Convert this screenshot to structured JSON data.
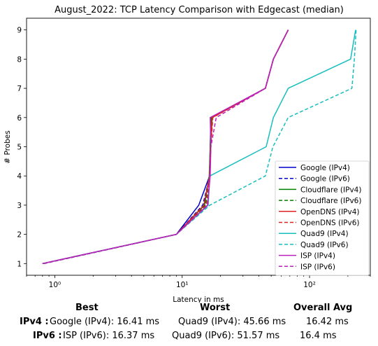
{
  "chart_data": {
    "type": "line",
    "title": "August_2022: TCP Latency Comparison with Edgecast (median)",
    "xlabel": "Latency in ms",
    "ylabel": "# Probes",
    "xscale": "log",
    "xlim": [
      0.6,
      300
    ],
    "ylim": [
      0.6,
      9.4
    ],
    "x_ticks": [
      1,
      10,
      100
    ],
    "x_tick_labels": [
      "10⁰",
      "10¹",
      "10²"
    ],
    "y_ticks": [
      1,
      2,
      3,
      4,
      5,
      6,
      7,
      8,
      9
    ],
    "legend_position": "lower-right",
    "series": [
      {
        "name": "Google (IPv4)",
        "color": "#0000cc",
        "dash": "solid",
        "points": [
          [
            0.8,
            1
          ],
          [
            9.0,
            2
          ],
          [
            13.5,
            3
          ],
          [
            16.41,
            4
          ],
          [
            16.6,
            5
          ],
          [
            16.8,
            6
          ],
          [
            45,
            7
          ],
          [
            52,
            8
          ],
          [
            68,
            9
          ]
        ]
      },
      {
        "name": "Google (IPv6)",
        "color": "#0000cc",
        "dash": "dashed",
        "points": [
          [
            0.82,
            1
          ],
          [
            9.0,
            2
          ],
          [
            14.5,
            3
          ],
          [
            16.5,
            4
          ],
          [
            16.7,
            5
          ],
          [
            17.2,
            6
          ],
          [
            45,
            7
          ],
          [
            52,
            8
          ],
          [
            68,
            9
          ]
        ]
      },
      {
        "name": "Cloudflare (IPv4)",
        "color": "#008000",
        "dash": "solid",
        "points": [
          [
            0.8,
            1
          ],
          [
            9.0,
            2
          ],
          [
            15,
            3
          ],
          [
            16.3,
            4
          ],
          [
            16.6,
            5
          ],
          [
            16.9,
            6
          ],
          [
            45,
            7
          ],
          [
            52,
            8
          ],
          [
            68,
            9
          ]
        ]
      },
      {
        "name": "Cloudflare (IPv6)",
        "color": "#008000",
        "dash": "dashed",
        "points": [
          [
            0.82,
            1
          ],
          [
            9.0,
            2
          ],
          [
            15.2,
            3
          ],
          [
            16.4,
            4
          ],
          [
            16.7,
            5
          ],
          [
            17.1,
            6
          ],
          [
            45,
            7
          ],
          [
            52,
            8
          ],
          [
            68,
            9
          ]
        ]
      },
      {
        "name": "OpenDNS (IPv4)",
        "color": "#dd2222",
        "dash": "solid",
        "points": [
          [
            0.8,
            1
          ],
          [
            9.0,
            2
          ],
          [
            14.8,
            3
          ],
          [
            16.4,
            4
          ],
          [
            16.7,
            5
          ],
          [
            17.2,
            6
          ],
          [
            45,
            7
          ],
          [
            52,
            8
          ],
          [
            68,
            9
          ]
        ]
      },
      {
        "name": "OpenDNS (IPv6)",
        "color": "#dd2222",
        "dash": "dashed",
        "points": [
          [
            0.82,
            1
          ],
          [
            9.0,
            2
          ],
          [
            15.5,
            3
          ],
          [
            16.5,
            4
          ],
          [
            16.8,
            5
          ],
          [
            17.4,
            6
          ],
          [
            45,
            7
          ],
          [
            52,
            8
          ],
          [
            68,
            9
          ]
        ]
      },
      {
        "name": "Quad9 (IPv4)",
        "color": "#17bebe",
        "dash": "solid",
        "points": [
          [
            0.8,
            1
          ],
          [
            9.0,
            2
          ],
          [
            16.0,
            3
          ],
          [
            16.5,
            4
          ],
          [
            45.66,
            5
          ],
          [
            52,
            6
          ],
          [
            68,
            7
          ],
          [
            210,
            8
          ],
          [
            230,
            9
          ]
        ]
      },
      {
        "name": "Quad9 (IPv6)",
        "color": "#17bebe",
        "dash": "dashed",
        "points": [
          [
            0.82,
            1
          ],
          [
            9.0,
            2
          ],
          [
            16.5,
            3
          ],
          [
            45,
            4
          ],
          [
            51.57,
            5
          ],
          [
            68,
            6
          ],
          [
            215,
            7
          ],
          [
            225,
            8
          ],
          [
            232,
            9
          ]
        ]
      },
      {
        "name": "ISP (IPv4)",
        "color": "#bb22bb",
        "dash": "solid",
        "points": [
          [
            0.8,
            1
          ],
          [
            9.0,
            2
          ],
          [
            15.8,
            3
          ],
          [
            16.6,
            4
          ],
          [
            16.8,
            5
          ],
          [
            16.6,
            6
          ],
          [
            45,
            7
          ],
          [
            52,
            8
          ],
          [
            68,
            9
          ]
        ]
      },
      {
        "name": "ISP (IPv6)",
        "color": "#bb22bb",
        "dash": "dashed",
        "points": [
          [
            0.82,
            1
          ],
          [
            9.0,
            2
          ],
          [
            15.9,
            3
          ],
          [
            16.37,
            4
          ],
          [
            16.8,
            5
          ],
          [
            18.5,
            6
          ],
          [
            45,
            7
          ],
          [
            52,
            8
          ],
          [
            68,
            9
          ]
        ]
      }
    ]
  },
  "stats": {
    "headers": {
      "best": "Best",
      "worst": "Worst",
      "avg": "Overall Avg"
    },
    "rows": [
      {
        "label": "IPv4 :",
        "best": "Google (IPv4): 16.41 ms",
        "worst": "Quad9 (IPv4): 45.66 ms",
        "avg": "16.42 ms"
      },
      {
        "label": "IPv6 :",
        "best": "ISP (IPv6): 16.37 ms",
        "worst": "Quad9 (IPv6): 51.57 ms",
        "avg": "16.4 ms"
      }
    ]
  }
}
